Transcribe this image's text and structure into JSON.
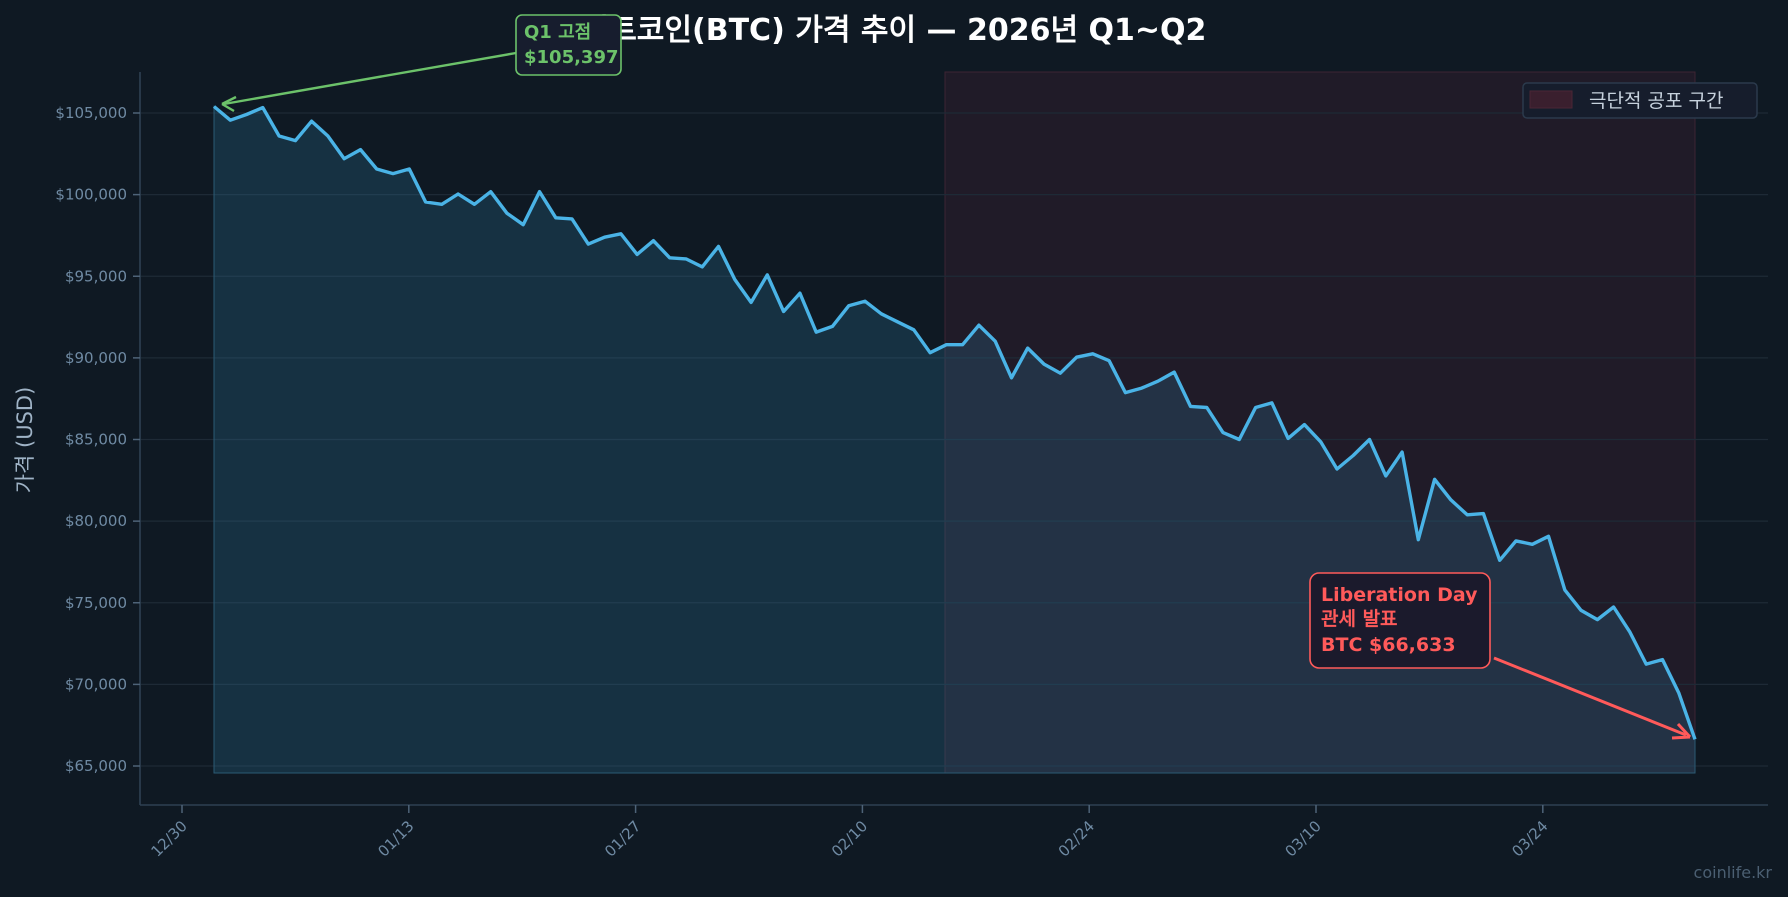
{
  "chart_data": {
    "type": "line",
    "title": "비트코인(BTC) 가격 추이 — 2026년 Q1~Q2",
    "xlabel": "",
    "ylabel": "가격 (USD)",
    "x_tick_labels": [
      "12/30",
      "01/13",
      "01/27",
      "02/10",
      "02/24",
      "03/10",
      "03/24"
    ],
    "y_tick_labels": [
      "$65,000",
      "$70,000",
      "$75,000",
      "$80,000",
      "$85,000",
      "$90,000",
      "$95,000",
      "$100,000",
      "$105,000"
    ],
    "y_ticks": [
      65000,
      70000,
      75000,
      80000,
      85000,
      90000,
      95000,
      100000,
      105000
    ],
    "ylim": [
      63000,
      107500
    ],
    "x_range_days": [
      -2.1,
      98.5
    ],
    "grid": true,
    "x_start_date": "01/01",
    "series": [
      {
        "name": "BTC",
        "color": "#4ab3e6",
        "values": [
          105397,
          104560,
          104910,
          105330,
          103590,
          103310,
          104500,
          103590,
          102200,
          102760,
          101570,
          101290,
          101570,
          99550,
          99410,
          100040,
          99410,
          100180,
          98860,
          98160,
          100180,
          98580,
          98510,
          96970,
          97390,
          97600,
          96340,
          97180,
          96130,
          96060,
          95570,
          96830,
          94800,
          93400,
          95080,
          92840,
          93960,
          91580,
          91930,
          93190,
          93470,
          92700,
          92210,
          91720,
          90320,
          90810,
          90810,
          92000,
          91020,
          88780,
          90600,
          89620,
          89060,
          90040,
          90250,
          89830,
          87870,
          88150,
          88570,
          89130,
          87030,
          86960,
          85420,
          85000,
          86960,
          87240,
          85070,
          85910,
          84860,
          83190,
          84020,
          85000,
          82770,
          84230,
          78860,
          82560,
          81300,
          80390,
          80460,
          77600,
          78790,
          78580,
          79070,
          75790,
          74530,
          73970,
          74740,
          73200,
          71240,
          71520,
          69490,
          66633
        ]
      }
    ],
    "shaded_region": {
      "label": "극단적 공포 구간",
      "x_start_day": 47.1,
      "x_end_day": 93.4,
      "color": "#3a1f2e"
    },
    "legend": {
      "position": "upper right",
      "entries": [
        "극단적 공포 구간"
      ]
    },
    "annotations": [
      {
        "text": [
          "Q1 고점",
          "$105,397"
        ],
        "color": "#6cc26a",
        "point_index": 0,
        "value": 105397
      },
      {
        "text": [
          "Liberation Day",
          "관세 발표",
          "BTC $66,633"
        ],
        "color": "#ff5a5a",
        "point_index": 91,
        "value": 66633
      }
    ]
  },
  "watermark": "coinlife.kr"
}
